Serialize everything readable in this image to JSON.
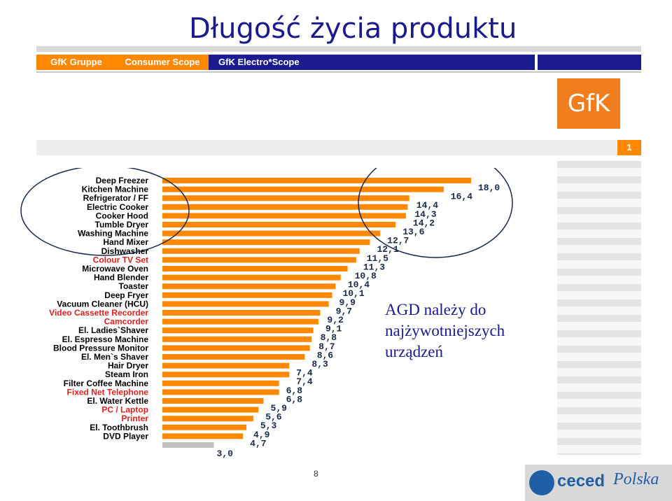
{
  "title": "Długość życia produktu",
  "nav": {
    "item1": "GfK Gruppe",
    "item2": "Consumer Scope",
    "item3": "GfK Electro*Scope"
  },
  "logo": {
    "gfk": "GfK"
  },
  "page_badge": "1",
  "page_number": "8",
  "annotation": [
    "AGD należy do",
    "najżywotniejszych",
    "urządzeń"
  ],
  "footer_logo": {
    "part1": "ceced",
    "part2": "Polska"
  },
  "colors": {
    "bar": "#ff8800",
    "bar_gray": "#c0c0c0",
    "black_label": "#000000",
    "red_label": "#e02020",
    "ellipse": "#1a2a4a"
  },
  "chart_data": {
    "type": "bar",
    "orientation": "horizontal",
    "title": "",
    "xlabel": "",
    "ylabel": "",
    "categories": [
      "Deep Freezer",
      "Kitchen Machine",
      "Refrigerator / FF",
      "Electric Cooker",
      "Cooker Hood",
      "Tumble Dryer",
      "Washing Machine",
      "Hand Mixer",
      "Dishwasher",
      "Colour TV Set",
      "Microwave Oven",
      "Hand Blender",
      "Toaster",
      "Deep Fryer",
      "Vacuum Cleaner (HCU)",
      "Video Cassette Recorder",
      "Camcorder",
      "El. Ladies`Shaver",
      "El. Espresso Machine",
      "Blood Pressure Monitor",
      "El. Men`s Shaver",
      "Hair Dryer",
      "Steam Iron",
      "Filter Coffee Machine",
      "Fixed Net Telephone",
      "El. Water Kettle",
      "PC / Laptop",
      "Printer",
      "El. Toothbrush",
      "DVD Player"
    ],
    "category_colors": [
      "black",
      "black",
      "black",
      "black",
      "black",
      "black",
      "black",
      "black",
      "black",
      "red",
      "black",
      "black",
      "black",
      "black",
      "black",
      "red",
      "red",
      "black",
      "black",
      "black",
      "black",
      "black",
      "black",
      "black",
      "red",
      "black",
      "red",
      "red",
      "black",
      "black"
    ],
    "values": [
      18.0,
      16.4,
      14.4,
      14.3,
      14.2,
      13.6,
      12.7,
      12.1,
      11.5,
      11.3,
      10.8,
      10.4,
      10.1,
      9.9,
      9.7,
      9.2,
      9.1,
      8.8,
      8.7,
      8.6,
      8.3,
      7.4,
      7.4,
      6.8,
      6.8,
      5.9,
      5.6,
      5.3,
      4.9,
      4.7
    ],
    "value_labels": [
      "18,0",
      "16,4",
      "14,4",
      "14,3",
      "14,2",
      "13,6",
      "12,7",
      "12,1",
      "11,5",
      "11,3",
      "10,8",
      "10,4",
      "10,1",
      "9,9",
      "9,7",
      "9,2",
      "9,1",
      "8,8",
      "8,7",
      "8,6",
      "8,3",
      "7,4",
      "7,4",
      "6,8",
      "6,8",
      "5,9",
      "5,6",
      "5,3",
      "4,9",
      "4,7"
    ],
    "extra_bar": {
      "value": 3.0,
      "label": "3,0"
    },
    "xlim": [
      0,
      18
    ],
    "grid": false
  }
}
